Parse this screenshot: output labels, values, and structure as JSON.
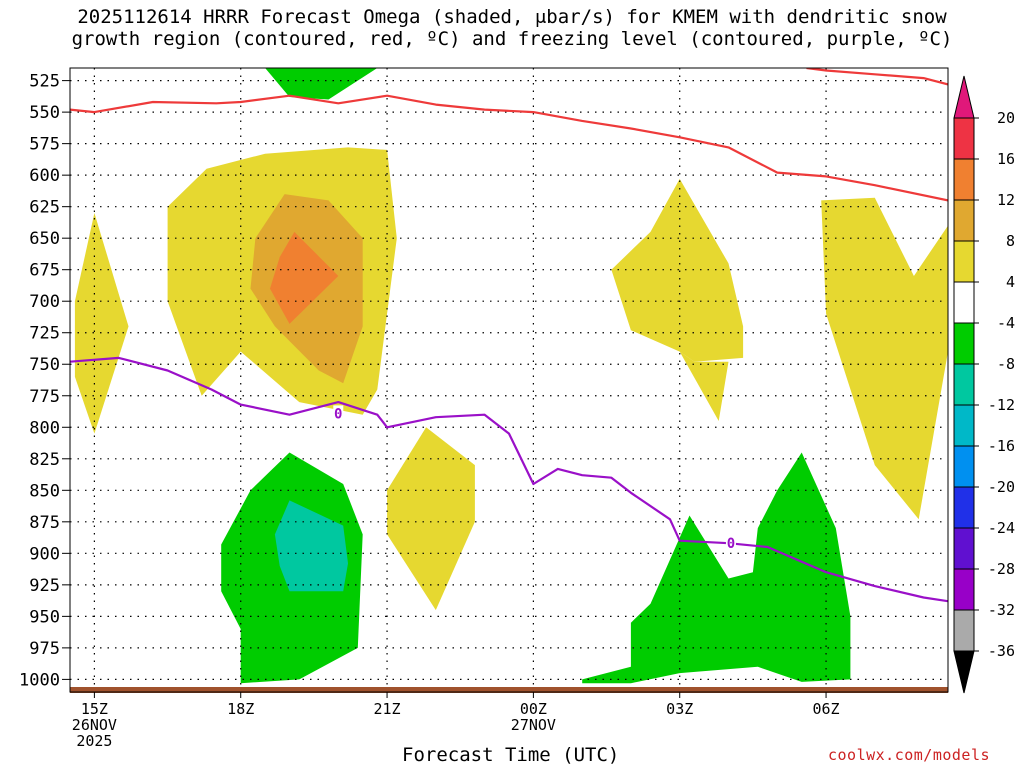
{
  "title_line1": "2025112614 HRRR Forecast Omega (shaded, μbar/s) for KMEM with dendritic snow",
  "title_line2": "growth region (contoured, red, ºC) and freezing level (contoured, purple, ºC)",
  "chart_data": {
    "type": "time-height cross-section",
    "xlabel": "Forecast Time (UTC)",
    "credit": "coolwx.com/models",
    "y_axis": {
      "label_unit": "hPa",
      "reversed": true,
      "ylim": [
        515,
        1010
      ],
      "ticks": [
        525,
        550,
        575,
        600,
        625,
        650,
        675,
        700,
        725,
        750,
        775,
        800,
        825,
        850,
        875,
        900,
        925,
        950,
        975,
        1000
      ]
    },
    "x_axis": {
      "unit": "forecast hour",
      "xlim": [
        14.5,
        32.5
      ],
      "ticks": [
        {
          "hour": 15,
          "lines": [
            "15Z",
            "26NOV",
            "2025"
          ]
        },
        {
          "hour": 18,
          "lines": [
            "18Z"
          ]
        },
        {
          "hour": 21,
          "lines": [
            "21Z"
          ]
        },
        {
          "hour": 24,
          "lines": [
            "00Z",
            "27NOV"
          ]
        },
        {
          "hour": 27,
          "lines": [
            "03Z"
          ]
        },
        {
          "hour": 30,
          "lines": [
            "06Z"
          ]
        }
      ]
    },
    "colorbar": {
      "levels": [
        20,
        16,
        12,
        8,
        4,
        -4,
        -8,
        -12,
        -16,
        -20,
        -24,
        -28,
        -32,
        -36
      ],
      "colors": [
        "#ee3344",
        "#f08030",
        "#e0a830",
        "#e6d830",
        "#ffffff",
        "#00cc00",
        "#00c8a0",
        "#00b8c8",
        "#0090f0",
        "#2030e8",
        "#6010d0",
        "#9800c8",
        "#aaaaaa"
      ],
      "top_arrow_color": "#e0187a",
      "bottom_arrow_color": "#000000"
    },
    "fills": [
      {
        "level": 4,
        "color": "#e6d830",
        "points": [
          [
            15.0,
            630
          ],
          [
            15.7,
            720
          ],
          [
            15.0,
            805
          ],
          [
            14.6,
            760
          ],
          [
            14.6,
            700
          ]
        ]
      },
      {
        "level": 4,
        "color": "#e6d830",
        "points": [
          [
            16.5,
            625
          ],
          [
            17.3,
            595
          ],
          [
            18.5,
            583
          ],
          [
            20.2,
            578
          ],
          [
            21.0,
            580
          ],
          [
            21.2,
            650
          ],
          [
            20.8,
            770
          ],
          [
            20.5,
            790
          ],
          [
            19.2,
            780
          ],
          [
            18.0,
            740
          ],
          [
            17.2,
            775
          ],
          [
            16.5,
            700
          ]
        ]
      },
      {
        "level": 4,
        "color": "#e6d830",
        "points": [
          [
            21.0,
            850
          ],
          [
            21.8,
            800
          ],
          [
            22.8,
            830
          ],
          [
            22.8,
            875
          ],
          [
            22.0,
            945
          ],
          [
            21.0,
            885
          ]
        ]
      },
      {
        "level": 4,
        "color": "#e6d830",
        "points": [
          [
            25.6,
            675
          ],
          [
            26.4,
            645
          ],
          [
            27.0,
            603
          ],
          [
            28.0,
            670
          ],
          [
            28.3,
            720
          ],
          [
            28.3,
            745
          ],
          [
            27.3,
            748
          ],
          [
            27.0,
            740
          ],
          [
            26.0,
            723
          ]
        ]
      },
      {
        "level": 4,
        "color": "#e6d830",
        "points": [
          [
            27.0,
            740
          ],
          [
            27.3,
            748
          ],
          [
            28.0,
            748
          ],
          [
            27.8,
            795
          ]
        ]
      },
      {
        "level": 4,
        "color": "#e6d830",
        "points": [
          [
            29.9,
            620
          ],
          [
            31.0,
            618
          ],
          [
            31.8,
            680
          ],
          [
            32.5,
            640
          ],
          [
            32.5,
            740
          ],
          [
            31.9,
            873
          ],
          [
            31.0,
            830
          ],
          [
            30.0,
            710
          ]
        ]
      },
      {
        "level": 8,
        "color": "#e0a830",
        "points": [
          [
            18.3,
            650
          ],
          [
            18.9,
            615
          ],
          [
            19.8,
            620
          ],
          [
            20.5,
            650
          ],
          [
            20.5,
            720
          ],
          [
            20.1,
            765
          ],
          [
            19.6,
            755
          ],
          [
            18.7,
            720
          ],
          [
            18.2,
            690
          ]
        ]
      },
      {
        "level": 12,
        "color": "#f08030",
        "points": [
          [
            18.8,
            665
          ],
          [
            19.1,
            645
          ],
          [
            20.0,
            680
          ],
          [
            19.0,
            718
          ],
          [
            18.6,
            690
          ]
        ]
      },
      {
        "level": -4,
        "color": "#00cc00",
        "points": [
          [
            18.5,
            515
          ],
          [
            20.8,
            515
          ],
          [
            19.8,
            540
          ],
          [
            19.0,
            538
          ]
        ]
      },
      {
        "level": -4,
        "color": "#00cc00",
        "points": [
          [
            17.6,
            893
          ],
          [
            18.2,
            850
          ],
          [
            19.0,
            820
          ],
          [
            20.1,
            845
          ],
          [
            20.5,
            885
          ],
          [
            20.4,
            975
          ],
          [
            19.2,
            1000
          ],
          [
            18.0,
            1003
          ],
          [
            18.0,
            960
          ],
          [
            17.6,
            930
          ]
        ]
      },
      {
        "level": -8,
        "color": "#00c8a0",
        "points": [
          [
            18.7,
            885
          ],
          [
            19.0,
            858
          ],
          [
            20.1,
            878
          ],
          [
            20.2,
            908
          ],
          [
            20.1,
            930
          ],
          [
            19.0,
            930
          ],
          [
            18.8,
            910
          ]
        ]
      },
      {
        "level": -4,
        "color": "#00cc00",
        "points": [
          [
            25.0,
            1000
          ],
          [
            26.0,
            990
          ],
          [
            26.0,
            955
          ],
          [
            26.4,
            940
          ],
          [
            26.8,
            905
          ],
          [
            27.2,
            870
          ],
          [
            28.0,
            920
          ],
          [
            28.5,
            915
          ],
          [
            28.6,
            880
          ],
          [
            29.0,
            850
          ],
          [
            29.5,
            820
          ],
          [
            30.2,
            880
          ],
          [
            30.5,
            950
          ],
          [
            30.5,
            1000
          ],
          [
            29.5,
            1002
          ],
          [
            28.6,
            990
          ],
          [
            27.0,
            995
          ],
          [
            26.0,
            1003
          ],
          [
            25.0,
            1003
          ]
        ]
      }
    ],
    "lines": [
      {
        "name": "dendritic growth top (red)",
        "color": "#ee3a3a",
        "points": [
          [
            14.5,
            548
          ],
          [
            15.0,
            550
          ],
          [
            16.2,
            542
          ],
          [
            17.5,
            543
          ],
          [
            18.0,
            542
          ],
          [
            19.0,
            537
          ],
          [
            20.0,
            543
          ],
          [
            21.0,
            537
          ],
          [
            22.0,
            544
          ],
          [
            23.0,
            548
          ],
          [
            24.0,
            550
          ],
          [
            25.0,
            557
          ],
          [
            26.0,
            563
          ],
          [
            27.0,
            570
          ],
          [
            28.0,
            578
          ],
          [
            29.0,
            598
          ],
          [
            30.0,
            601
          ],
          [
            31.0,
            608
          ],
          [
            32.5,
            620
          ]
        ]
      },
      {
        "name": "dendritic growth upper (red)",
        "color": "#ee3a3a",
        "points": [
          [
            29.6,
            515
          ],
          [
            30.0,
            517
          ],
          [
            31.0,
            520
          ],
          [
            32.0,
            523
          ],
          [
            32.5,
            528
          ]
        ]
      },
      {
        "name": "freezing level (purple)",
        "color": "#9a10c8",
        "points": [
          [
            14.5,
            748
          ],
          [
            15.5,
            745
          ],
          [
            16.5,
            755
          ],
          [
            17.4,
            770
          ],
          [
            18.0,
            782
          ],
          [
            19.0,
            790
          ],
          [
            20.0,
            780
          ],
          [
            20.8,
            790
          ],
          [
            21.0,
            800
          ],
          [
            22.0,
            792
          ],
          [
            23.0,
            790
          ],
          [
            23.5,
            805
          ],
          [
            24.0,
            845
          ],
          [
            24.5,
            833
          ],
          [
            25.0,
            838
          ],
          [
            25.6,
            840
          ],
          [
            26.0,
            852
          ],
          [
            26.8,
            873
          ],
          [
            27.0,
            890
          ],
          [
            28.0,
            892
          ],
          [
            28.8,
            895
          ],
          [
            30.0,
            915
          ],
          [
            31.0,
            926
          ],
          [
            32.0,
            935
          ],
          [
            32.5,
            938
          ]
        ]
      }
    ],
    "line_labels": [
      {
        "text": "0",
        "hour": 20.0,
        "hpa": 789,
        "color": "#9a10c8"
      },
      {
        "text": "0",
        "hour": 28.05,
        "hpa": 892,
        "color": "#9a10c8"
      }
    ],
    "ground_color": "#a0522d"
  }
}
